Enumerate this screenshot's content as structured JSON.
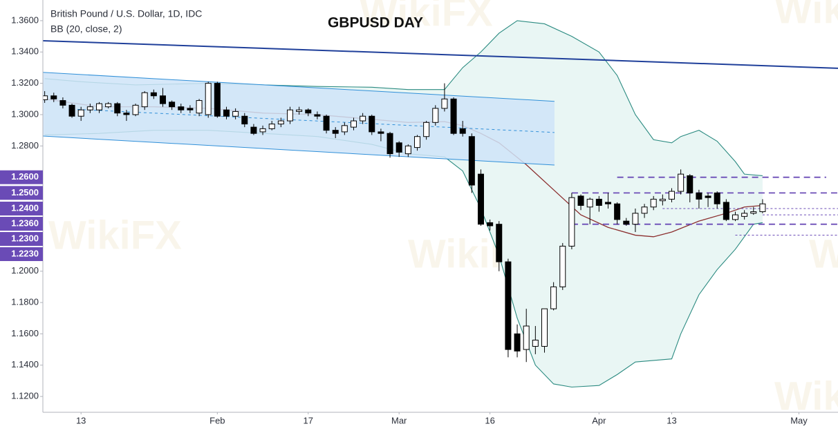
{
  "chart_data": {
    "type": "candlestick",
    "title": "GBPUSD DAY",
    "legend_lines": [
      "British Pound / U.S. Dollar, 1D, IDC",
      "BB (20, close, 2)"
    ],
    "watermark": "WikiFX",
    "x": [
      0,
      1,
      2,
      3,
      4,
      5,
      6,
      7,
      8,
      9,
      10,
      11,
      12,
      13,
      14,
      15,
      16,
      17,
      18,
      19,
      20,
      21,
      22,
      23,
      24,
      25,
      26,
      27,
      28,
      29,
      30,
      31,
      32,
      33,
      34,
      35,
      36,
      37,
      38,
      39,
      40,
      41,
      42,
      43,
      44,
      45,
      46,
      47,
      48,
      49,
      50,
      51,
      52,
      53,
      54,
      55,
      56,
      57,
      58,
      59,
      60,
      61,
      62,
      63,
      64,
      65,
      66,
      67,
      68,
      69,
      70,
      71,
      72,
      73,
      74,
      75,
      76,
      77,
      78,
      79
    ],
    "open": [
      1.3095,
      1.312,
      1.309,
      1.306,
      1.299,
      1.303,
      1.303,
      1.305,
      1.307,
      1.301,
      1.3,
      1.305,
      1.314,
      1.312,
      1.308,
      1.305,
      1.304,
      1.301,
      1.3,
      1.32,
      1.303,
      1.299,
      1.299,
      1.292,
      1.289,
      1.291,
      1.294,
      1.296,
      1.302,
      1.303,
      1.3,
      1.299,
      1.29,
      1.289,
      1.292,
      1.296,
      1.299,
      1.289,
      1.288,
      1.282,
      1.275,
      1.279,
      1.286,
      1.295,
      1.304,
      1.31,
      1.291,
      1.286,
      1.262,
      1.231,
      1.23,
      1.206,
      1.16,
      1.15,
      1.152,
      1.152,
      1.176,
      1.19,
      1.216,
      1.248,
      1.241,
      1.246,
      1.244,
      1.243,
      1.232,
      1.23,
      1.237,
      1.241,
      1.245,
      1.246,
      1.251,
      1.261,
      1.25,
      1.248,
      1.25,
      1.244,
      1.233,
      1.235,
      1.237,
      1.238
    ],
    "high": [
      1.315,
      1.314,
      1.311,
      1.307,
      1.305,
      1.307,
      1.308,
      1.308,
      1.308,
      1.303,
      1.307,
      1.315,
      1.316,
      1.317,
      1.309,
      1.307,
      1.306,
      1.31,
      1.321,
      1.321,
      1.305,
      1.304,
      1.301,
      1.294,
      1.293,
      1.296,
      1.298,
      1.305,
      1.305,
      1.304,
      1.302,
      1.3,
      1.292,
      1.295,
      1.298,
      1.301,
      1.3,
      1.291,
      1.289,
      1.283,
      1.281,
      1.287,
      1.296,
      1.306,
      1.32,
      1.311,
      1.296,
      1.288,
      1.265,
      1.233,
      1.232,
      1.208,
      1.166,
      1.176,
      1.165,
      1.176,
      1.193,
      1.218,
      1.25,
      1.249,
      1.247,
      1.248,
      1.25,
      1.244,
      1.234,
      1.24,
      1.243,
      1.248,
      1.249,
      1.253,
      1.265,
      1.262,
      1.252,
      1.25,
      1.251,
      1.246,
      1.238,
      1.239,
      1.241,
      1.246
    ],
    "low": [
      1.3075,
      1.308,
      1.304,
      1.298,
      1.296,
      1.301,
      1.301,
      1.304,
      1.299,
      1.296,
      1.299,
      1.303,
      1.31,
      1.305,
      1.303,
      1.301,
      1.301,
      1.299,
      1.298,
      1.298,
      1.297,
      1.297,
      1.292,
      1.287,
      1.287,
      1.29,
      1.292,
      1.294,
      1.3,
      1.299,
      1.297,
      1.288,
      1.285,
      1.287,
      1.29,
      1.294,
      1.287,
      1.283,
      1.2725,
      1.273,
      1.273,
      1.277,
      1.284,
      1.293,
      1.302,
      1.287,
      1.286,
      1.25,
      1.229,
      1.226,
      1.2,
      1.145,
      1.145,
      1.142,
      1.147,
      1.148,
      1.175,
      1.188,
      1.214,
      1.239,
      1.23,
      1.238,
      1.24,
      1.23,
      1.229,
      1.225,
      1.234,
      1.239,
      1.242,
      1.244,
      1.249,
      1.244,
      1.24,
      1.241,
      1.24,
      1.232,
      1.232,
      1.233,
      1.236,
      1.237
    ],
    "close": [
      1.312,
      1.31,
      1.306,
      1.299,
      1.303,
      1.305,
      1.307,
      1.307,
      1.301,
      1.3,
      1.306,
      1.314,
      1.312,
      1.307,
      1.305,
      1.303,
      1.303,
      1.309,
      1.32,
      1.299,
      1.299,
      1.302,
      1.294,
      1.288,
      1.291,
      1.294,
      1.296,
      1.303,
      1.303,
      1.301,
      1.299,
      1.29,
      1.288,
      1.293,
      1.296,
      1.299,
      1.289,
      1.288,
      1.275,
      1.276,
      1.28,
      1.286,
      1.295,
      1.304,
      1.31,
      1.288,
      1.288,
      1.255,
      1.23,
      1.229,
      1.206,
      1.15,
      1.149,
      1.165,
      1.156,
      1.176,
      1.19,
      1.216,
      1.247,
      1.242,
      1.246,
      1.242,
      1.243,
      1.233,
      1.23,
      1.237,
      1.241,
      1.246,
      1.246,
      1.251,
      1.262,
      1.25,
      1.246,
      1.247,
      1.243,
      1.233,
      1.236,
      1.237,
      1.238,
      1.243
    ],
    "up_color": "#ffffff",
    "down_color": "#000000",
    "bollinger": {
      "fill": "#e9f6f4",
      "upper": {
        "color": "#2a8a80",
        "x": [
          0,
          4,
          10,
          18,
          24,
          30,
          36,
          40,
          44,
          46,
          48,
          50,
          52,
          55,
          58,
          61,
          63,
          65,
          67,
          69,
          70,
          72,
          74,
          76,
          77,
          79
        ],
        "values": [
          1.323,
          1.321,
          1.319,
          1.32,
          1.319,
          1.318,
          1.3175,
          1.316,
          1.316,
          1.33,
          1.34,
          1.352,
          1.36,
          1.358,
          1.35,
          1.34,
          1.325,
          1.3,
          1.284,
          1.282,
          1.286,
          1.29,
          1.283,
          1.27,
          1.262,
          1.261
        ]
      },
      "middle": {
        "color": "#8b2e2e",
        "x": [
          0,
          6,
          12,
          18,
          24,
          30,
          36,
          40,
          44,
          46,
          48,
          50,
          53,
          56,
          59,
          62,
          65,
          67,
          69,
          72,
          75,
          77,
          79
        ],
        "values": [
          1.31,
          1.305,
          1.305,
          1.304,
          1.301,
          1.3,
          1.297,
          1.295,
          1.2955,
          1.293,
          1.288,
          1.282,
          1.268,
          1.252,
          1.236,
          1.228,
          1.223,
          1.222,
          1.225,
          1.232,
          1.237,
          1.241,
          1.242
        ]
      },
      "lower": {
        "color": "#2a8a80",
        "x": [
          0,
          6,
          12,
          18,
          24,
          30,
          36,
          40,
          44,
          46,
          48,
          50,
          52,
          54,
          56,
          58,
          61,
          63,
          65,
          67,
          69,
          70,
          72,
          74,
          76,
          78,
          79
        ],
        "values": [
          1.287,
          1.288,
          1.29,
          1.29,
          1.288,
          1.286,
          1.281,
          1.275,
          1.273,
          1.264,
          1.24,
          1.21,
          1.17,
          1.14,
          1.128,
          1.126,
          1.127,
          1.134,
          1.142,
          1.143,
          1.144,
          1.16,
          1.185,
          1.201,
          1.214,
          1.23,
          1.231
        ]
      }
    },
    "channel": {
      "fill": "#cfe4f8",
      "color": "#2f8fd8",
      "upper": {
        "x": [
          -0.2,
          56.1
        ],
        "values": [
          1.327,
          1.3085
        ]
      },
      "lower": {
        "x": [
          -0.2,
          56.1
        ],
        "values": [
          1.2863,
          1.2678
        ]
      },
      "mid": {
        "x": [
          3,
          56.1
        ],
        "values": [
          1.3035,
          1.2886
        ]
      }
    },
    "trendline": {
      "color": "#1f3f9a",
      "x": [
        -0.2,
        87.3
      ],
      "values": [
        1.3472,
        1.3296
      ]
    },
    "levels": [
      {
        "value": 1.26,
        "label": "1.2600",
        "from": 63,
        "to": 86,
        "style": "dash"
      },
      {
        "value": 1.25,
        "label": "1.2500",
        "from": 58,
        "to": 87.3,
        "style": "dash"
      },
      {
        "value": 1.24,
        "label": "1.2400",
        "from": 68,
        "to": 87.3,
        "style": "dot"
      },
      {
        "value": 1.236,
        "label": "1.2360",
        "from": 79,
        "to": 87.3,
        "style": "dot"
      },
      {
        "value": 1.23,
        "label": "1.2300",
        "from": 58,
        "to": 87.3,
        "style": "dash"
      },
      {
        "value": 1.223,
        "label": "1.2230",
        "from": 76,
        "to": 87.3,
        "style": "dot"
      }
    ],
    "level_color": "#6a4bb6",
    "xlim": [
      -0.2,
      87.3
    ],
    "xticks": [
      {
        "value": 4,
        "label": "13"
      },
      {
        "value": 19,
        "label": "Feb"
      },
      {
        "value": 29,
        "label": "17"
      },
      {
        "value": 39,
        "label": "Mar"
      },
      {
        "value": 49,
        "label": "16"
      },
      {
        "value": 61,
        "label": "Apr"
      },
      {
        "value": 69,
        "label": "13"
      },
      {
        "value": 83,
        "label": "May"
      }
    ],
    "ylim": [
      1.1099,
      1.3732
    ],
    "yticks": [
      {
        "value": 1.36,
        "label": "1.3600"
      },
      {
        "value": 1.34,
        "label": "1.3400"
      },
      {
        "value": 1.32,
        "label": "1.3200"
      },
      {
        "value": 1.3,
        "label": "1.3000"
      },
      {
        "value": 1.28,
        "label": "1.2800"
      },
      {
        "value": 1.2,
        "label": "1.2000"
      },
      {
        "value": 1.18,
        "label": "1.1800"
      },
      {
        "value": 1.16,
        "label": "1.1600"
      },
      {
        "value": 1.14,
        "label": "1.1400"
      },
      {
        "value": 1.12,
        "label": "1.1200"
      }
    ]
  }
}
